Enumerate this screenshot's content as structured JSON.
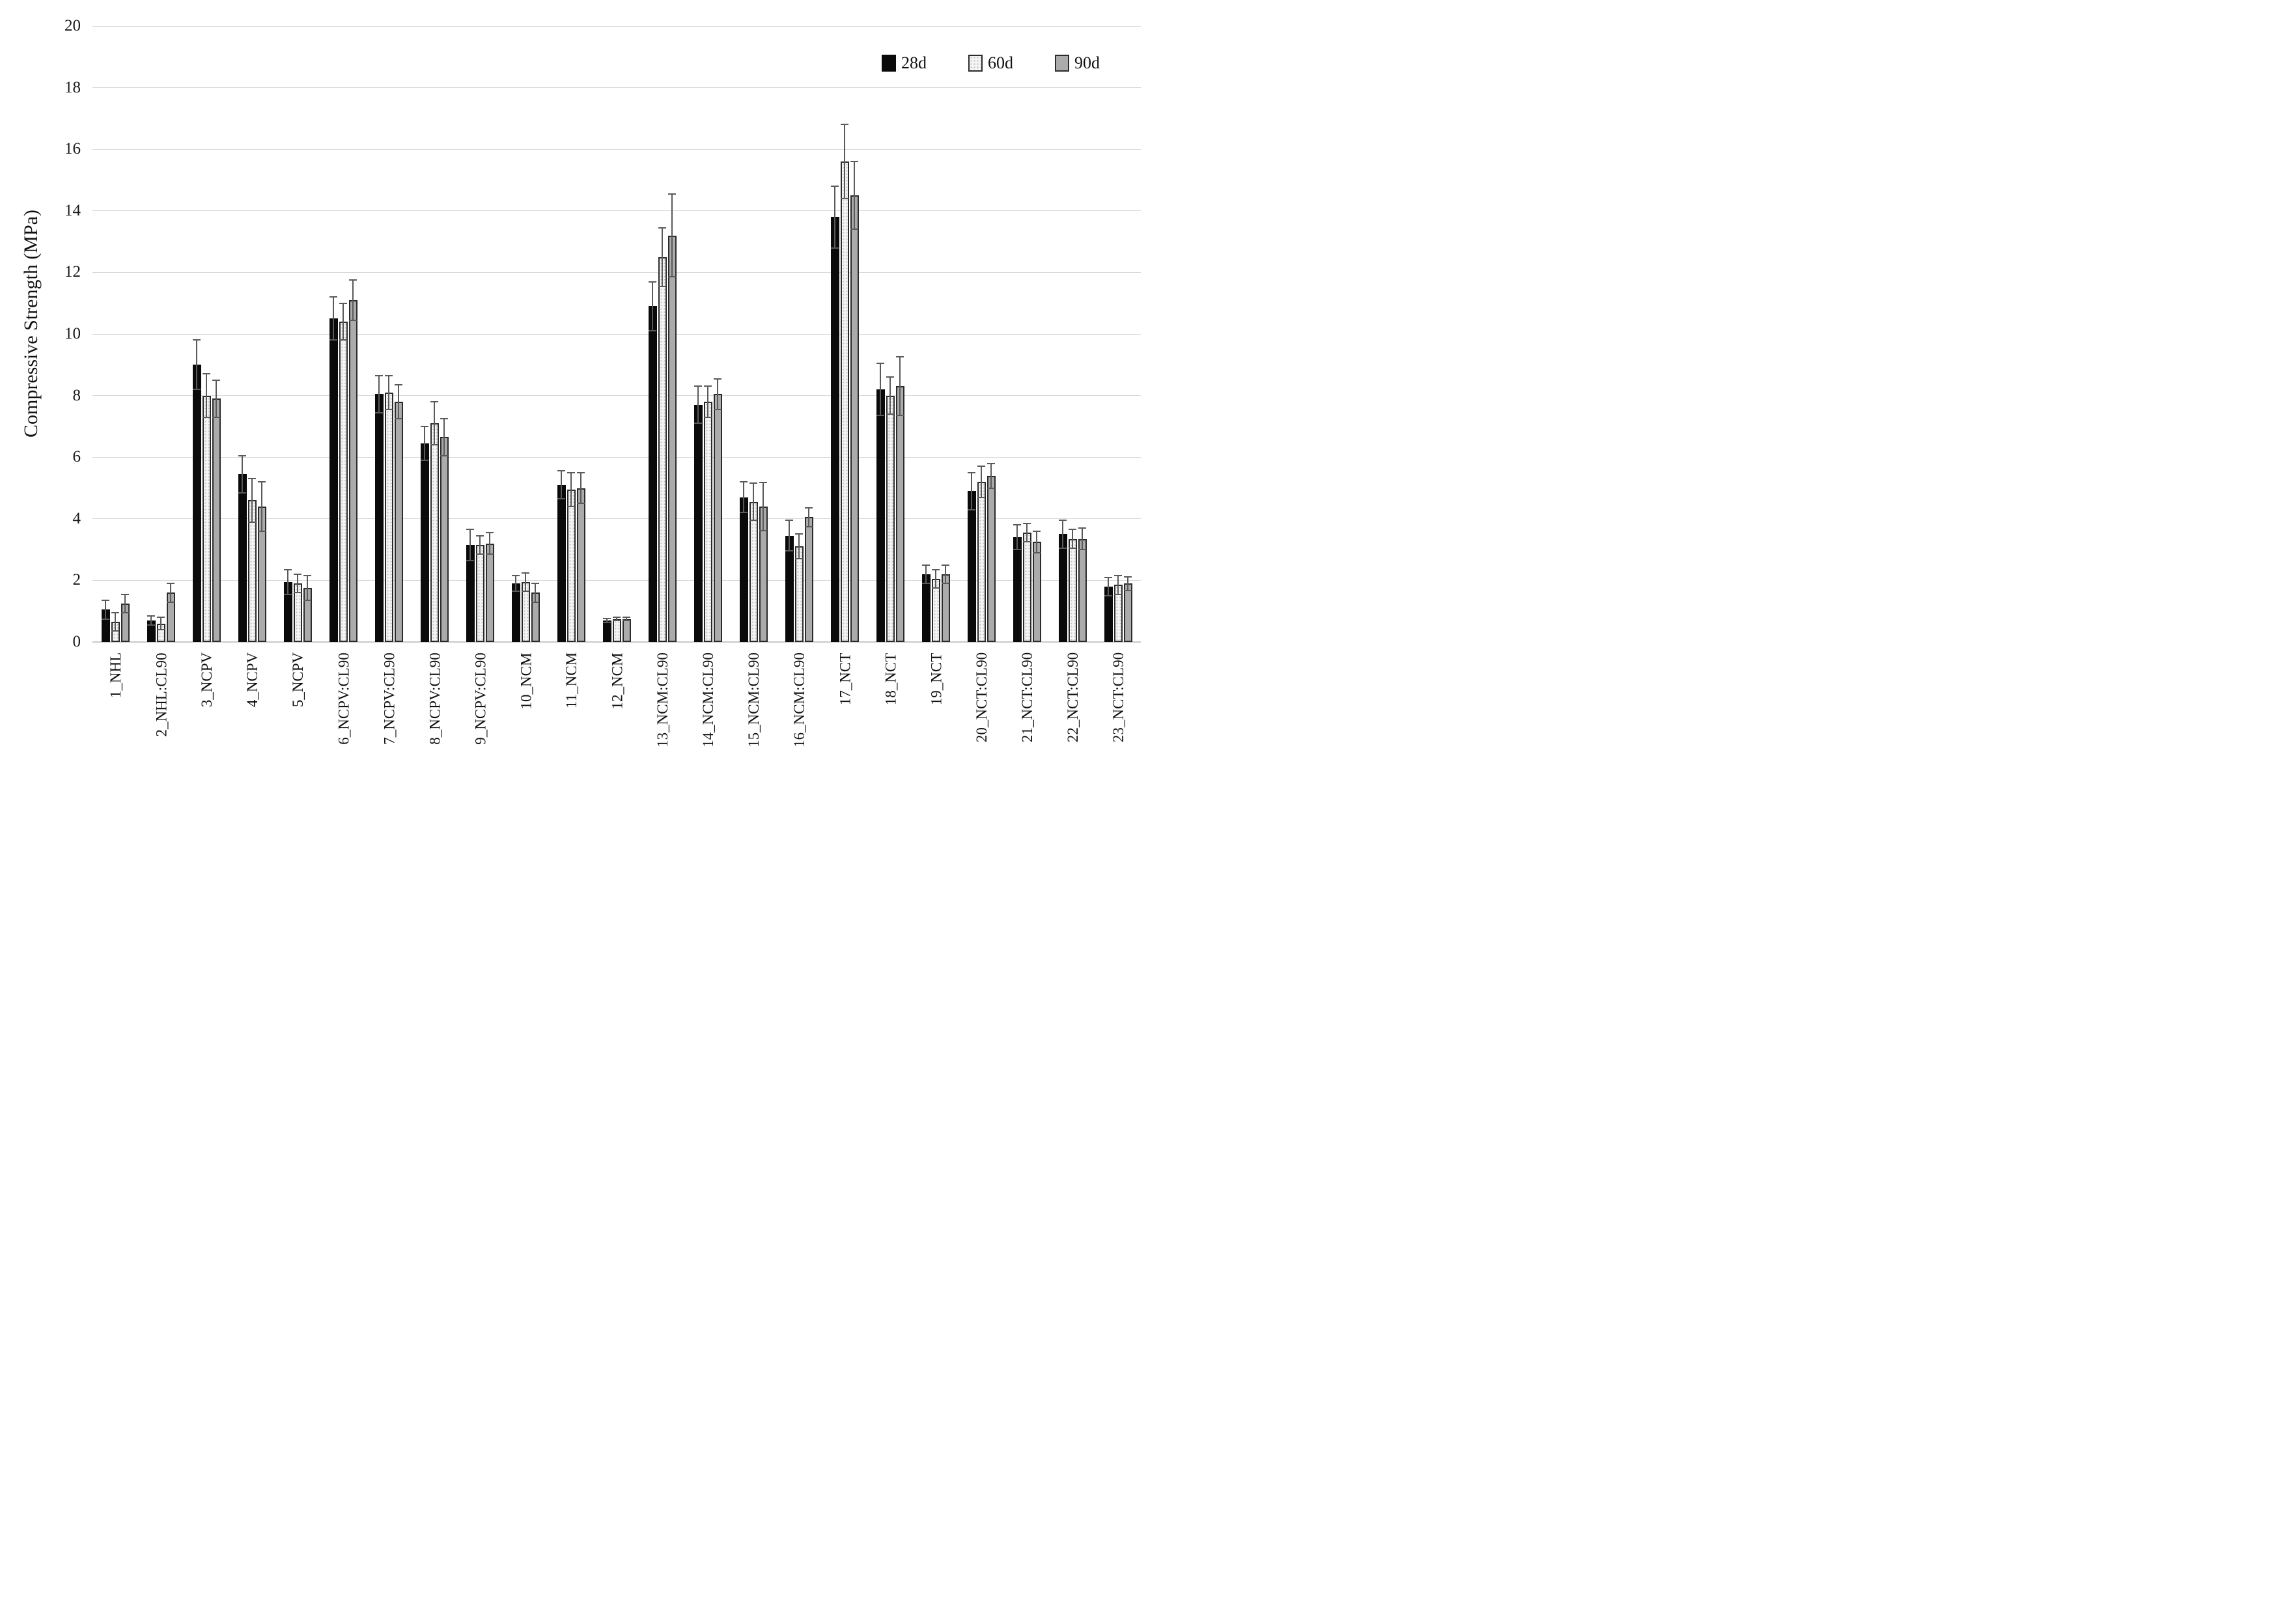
{
  "chart_data": {
    "type": "bar",
    "title": "",
    "xlabel": "",
    "ylabel": "Compressive Strength (MPa)",
    "ylim": [
      0,
      20
    ],
    "ytick_step": 2,
    "grid": "horizontal",
    "legend_position": "top-right-inside",
    "error_bars": true,
    "categories": [
      "1_NHL",
      "2_NHL:CL90",
      "3_NCPV",
      "4_NCPV",
      "5_NCPV",
      "6_NCPV:CL90",
      "7_NCPV:CL90",
      "8_NCPV:CL90",
      "9_NCPV:CL90",
      "10_NCM",
      "11_NCM",
      "12_NCM",
      "13_NCM:CL90",
      "14_NCM:CL90",
      "15_NCM:CL90",
      "16_NCM:CL90",
      "17_NCT",
      "18_NCT",
      "19_NCT",
      "20_NCT:CL90",
      "21_NCT:CL90",
      "22_NCT:CL90",
      "23_NCT:CL90"
    ],
    "series": [
      {
        "name": "28d",
        "style": "solid-black",
        "values": [
          1.05,
          0.7,
          9.0,
          5.45,
          1.95,
          10.5,
          8.05,
          6.45,
          3.15,
          1.9,
          5.1,
          0.7,
          10.9,
          7.7,
          4.7,
          3.45,
          13.8,
          8.2,
          2.2,
          4.9,
          3.4,
          3.5,
          1.8
        ],
        "errors": [
          0.3,
          0.15,
          0.8,
          0.6,
          0.4,
          0.7,
          0.6,
          0.55,
          0.5,
          0.25,
          0.45,
          0.07,
          0.8,
          0.6,
          0.5,
          0.5,
          1.0,
          0.85,
          0.3,
          0.6,
          0.4,
          0.45,
          0.3
        ]
      },
      {
        "name": "60d",
        "style": "dotted-light-gray",
        "values": [
          0.65,
          0.6,
          8.0,
          4.6,
          1.9,
          10.4,
          8.1,
          7.1,
          3.15,
          1.95,
          4.95,
          0.75,
          12.5,
          7.8,
          4.55,
          3.1,
          15.6,
          8.0,
          2.05,
          5.2,
          3.55,
          3.35,
          1.85
        ],
        "errors": [
          0.3,
          0.2,
          0.7,
          0.7,
          0.3,
          0.6,
          0.55,
          0.7,
          0.3,
          0.3,
          0.55,
          0.05,
          0.95,
          0.5,
          0.6,
          0.4,
          1.2,
          0.6,
          0.3,
          0.5,
          0.3,
          0.3,
          0.3
        ]
      },
      {
        "name": "90d",
        "style": "solid-gray",
        "values": [
          1.25,
          1.6,
          7.9,
          4.4,
          1.75,
          11.1,
          7.8,
          6.65,
          3.2,
          1.6,
          5.0,
          0.75,
          13.2,
          8.05,
          4.4,
          4.05,
          14.5,
          8.3,
          2.2,
          5.4,
          3.25,
          3.35,
          1.9
        ],
        "errors": [
          0.3,
          0.3,
          0.6,
          0.8,
          0.4,
          0.65,
          0.55,
          0.6,
          0.35,
          0.3,
          0.5,
          0.05,
          1.35,
          0.5,
          0.78,
          0.3,
          1.1,
          0.95,
          0.3,
          0.4,
          0.35,
          0.35,
          0.22
        ]
      }
    ],
    "colors": {
      "bar_28d": "#0a0a0a",
      "bar_60d_fill": "#f4f4f4",
      "bar_60d_dots": "#c0c0c0",
      "bar_90d": "#ababab",
      "bar_border": "#2b2b2b",
      "whisker": "#5a5a5a",
      "gridline": "#d9d9d9",
      "text": "#111111"
    }
  }
}
